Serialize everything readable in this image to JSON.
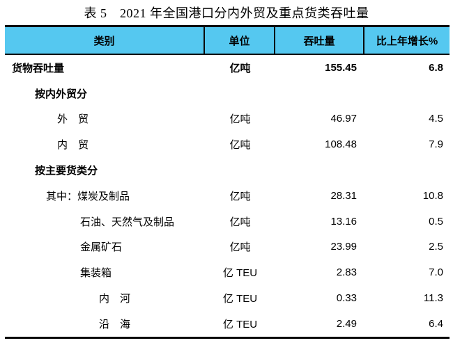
{
  "title": "表 5　2021 年全国港口分内外贸及重点货类吞吐量",
  "colors": {
    "header_bg": "#55C8F0",
    "border": "#0A0A0A",
    "text": "#000000"
  },
  "chart_data": {
    "type": "table",
    "title": "表 5　2021 年全国港口分内外贸及重点货类吞吐量",
    "columns": [
      "类别",
      "单位",
      "吞吐量",
      "比上年增长%"
    ],
    "rows": [
      [
        "货物吞吐量",
        "亿吨",
        155.45,
        6.8
      ],
      [
        "按内外贸分",
        "",
        null,
        null
      ],
      [
        "外　贸",
        "亿吨",
        46.97,
        4.5
      ],
      [
        "内　贸",
        "亿吨",
        108.48,
        7.9
      ],
      [
        "按主要货类分",
        "",
        null,
        null
      ],
      [
        "其中：煤炭及制品",
        "亿吨",
        28.31,
        10.8
      ],
      [
        "石油、天然气及制品",
        "亿吨",
        13.16,
        0.5
      ],
      [
        "金属矿石",
        "亿吨",
        23.99,
        2.5
      ],
      [
        "集装箱",
        "亿 TEU",
        2.83,
        7.0
      ],
      [
        "内　河",
        "亿 TEU",
        0.33,
        11.3
      ],
      [
        "沿　海",
        "亿 TEU",
        2.49,
        6.4
      ]
    ]
  },
  "table": {
    "headers": {
      "category": "类别",
      "unit": "单位",
      "throughput": "吞吐量",
      "growth": "比上年增长%"
    },
    "rows": [
      {
        "label": "货物吞吐量",
        "unit": "亿吨",
        "value": "155.45",
        "growth": "6.8"
      },
      {
        "label": "按内外贸分",
        "unit": "",
        "value": "",
        "growth": ""
      },
      {
        "label": "外　贸",
        "unit": "亿吨",
        "value": "46.97",
        "growth": "4.5"
      },
      {
        "label": "内　贸",
        "unit": "亿吨",
        "value": "108.48",
        "growth": "7.9"
      },
      {
        "label": "按主要货类分",
        "unit": "",
        "value": "",
        "growth": ""
      },
      {
        "label": "其中：煤炭及制品",
        "unit": "亿吨",
        "value": "28.31",
        "growth": "10.8"
      },
      {
        "label": "石油、天然气及制品",
        "unit": "亿吨",
        "value": "13.16",
        "growth": "0.5"
      },
      {
        "label": "金属矿石",
        "unit": "亿吨",
        "value": "23.99",
        "growth": "2.5"
      },
      {
        "label": "集装箱",
        "unit": "亿 TEU",
        "value": "2.83",
        "growth": "7.0"
      },
      {
        "label": "内　河",
        "unit": "亿 TEU",
        "value": "0.33",
        "growth": "11.3"
      },
      {
        "label": "沿　海",
        "unit": "亿 TEU",
        "value": "2.49",
        "growth": "6.4"
      }
    ]
  }
}
